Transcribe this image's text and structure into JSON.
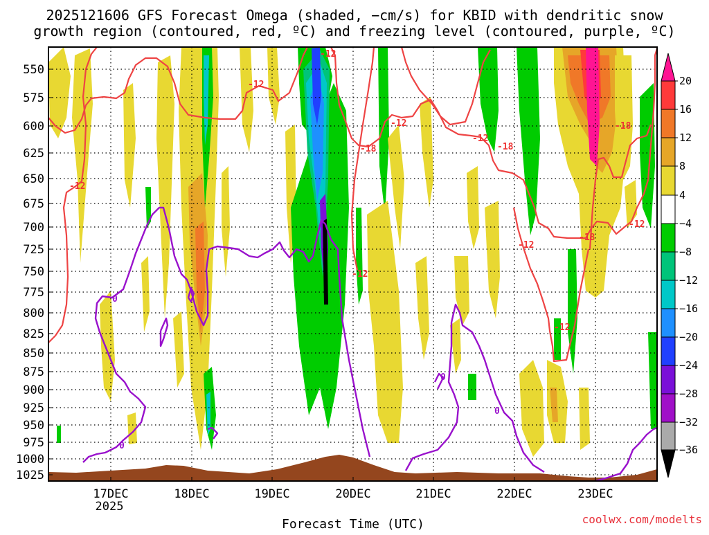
{
  "chart_data": {
    "type": "heatmap",
    "title_lines": [
      "2025121606 GFS Forecast Omega (shaded, −cm/s) for KBID with dendritic snow",
      "growth region (contoured, red, ºC) and freezing level (contoured, purple, ºC)"
    ],
    "xlabel": "Forecast Time (UTC)",
    "credit": "coolwx.com/modelts",
    "x_ticks": [
      "17DEC",
      "18DEC",
      "19DEC",
      "20DEC",
      "21DEC",
      "22DEC",
      "23DEC"
    ],
    "x_year_label": "2025",
    "y_ticks": [
      "550",
      "575",
      "600",
      "625",
      "650",
      "675",
      "700",
      "725",
      "750",
      "775",
      "800",
      "825",
      "850",
      "875",
      "900",
      "925",
      "950",
      "975",
      "1000",
      "1025"
    ],
    "ylim": [
      1030,
      525
    ],
    "xlim_days": [
      16.3,
      23.75
    ],
    "colorbar_labels": [
      "20",
      "16",
      "12",
      "8",
      "4",
      "−4",
      "−8",
      "−12",
      "−16",
      "−20",
      "−24",
      "−28",
      "−32",
      "−36"
    ],
    "colorbar_colors": [
      "#ff1493",
      "#ff3a3a",
      "#f07828",
      "#e6a628",
      "#e8d832",
      "#ffffff",
      "#00cc00",
      "#00c47a",
      "#00c8c8",
      "#1e90ff",
      "#2040ff",
      "#7a10d8",
      "#a010c8",
      "#aaaaaa",
      "#000000"
    ],
    "contour_labels": {
      "red": [
        "-12",
        "-12",
        "-12",
        "-12",
        "-12",
        "-12",
        "-12",
        "-12",
        "-12",
        "-18",
        "-18",
        "-18",
        "-18"
      ],
      "purple": [
        "0",
        "0",
        "0",
        "0"
      ]
    },
    "series": [
      {
        "name": "Omega shading (-cm/s)",
        "style": "filled"
      },
      {
        "name": "Dendritic growth -12/-18 ºC",
        "color": "#ee3333"
      },
      {
        "name": "Freezing level 0 ºC",
        "color": "#9911cc"
      }
    ]
  }
}
